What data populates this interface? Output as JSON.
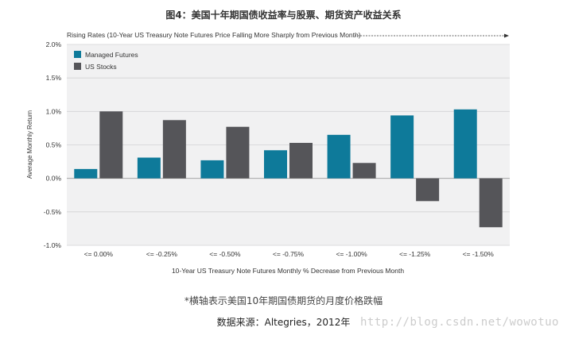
{
  "figure": {
    "title": "图4：美国十年期国债收益率与股票、期货资产收益关系",
    "footnote": "*横轴表示美国10年期国债期货的月度价格跌幅",
    "source": "数据来源：Altegries，2012年",
    "watermark": "http://blog.csdn.net/wowotuo"
  },
  "chart_data": {
    "type": "bar",
    "title": "Rising Rates (10-Year US Treasury Note Futures Price Falling More Sharply from Previous Month)",
    "xlabel": "10-Year US Treasury Note Futures Monthly % Decrease from Previous Month",
    "ylabel": "Average Monthly Return",
    "categories": [
      "<= 0.00%",
      "<= -0.25%",
      "<= -0.50%",
      "<= -0.75%",
      "<= -1.00%",
      "<= -1.25%",
      "<= -1.50%"
    ],
    "series": [
      {
        "name": "Managed Futures",
        "color": "#0e7a9a",
        "values": [
          0.14,
          0.31,
          0.27,
          0.42,
          0.65,
          0.94,
          1.03
        ]
      },
      {
        "name": "US Stocks",
        "color": "#555559",
        "values": [
          1.0,
          0.87,
          0.77,
          0.53,
          0.23,
          -0.34,
          -0.73
        ]
      }
    ],
    "yticks": [
      "2.0%",
      "1.5%",
      "1.0%",
      "0.5%",
      "0.0%",
      "-0.5%",
      "-1.0%"
    ],
    "ylim": [
      -1.0,
      2.0
    ],
    "grid": true,
    "legend_position": "top-left",
    "plot_background": "#f1f1f2"
  }
}
